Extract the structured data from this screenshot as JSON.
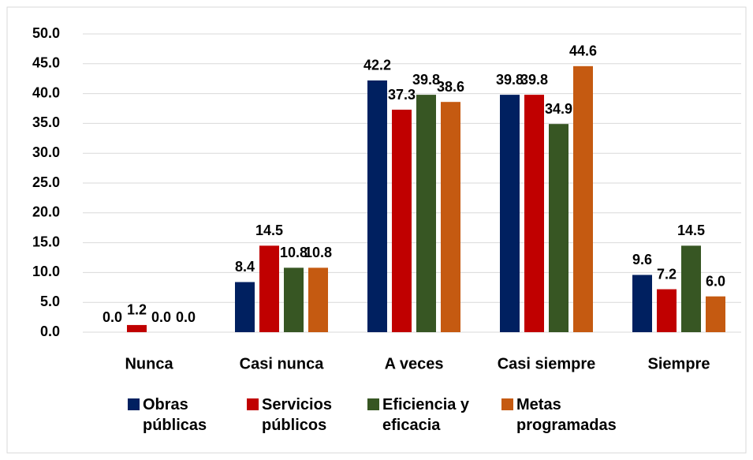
{
  "chart_data": {
    "type": "bar",
    "categories": [
      "Nunca",
      "Casi nunca",
      "A veces",
      "Casi siempre",
      "Siempre"
    ],
    "series": [
      {
        "name": "Obras públicas",
        "color": "#002060",
        "values": [
          0.0,
          8.4,
          42.2,
          39.8,
          9.6
        ],
        "value_labels": [
          "0.0",
          "8.4",
          "42.2",
          "39.8",
          "9.6"
        ]
      },
      {
        "name": "Servicios públicos",
        "color": "#c00000",
        "values": [
          1.2,
          14.5,
          37.3,
          39.8,
          7.2
        ],
        "value_labels": [
          "1.2",
          "14.5",
          "37.3",
          "39.8",
          "7.2"
        ]
      },
      {
        "name": "Eficiencia y eficacia",
        "color": "#375623",
        "values": [
          0.0,
          10.8,
          39.8,
          34.9,
          14.5
        ],
        "value_labels": [
          "0.0",
          "10.8",
          "39.8",
          "34.9",
          "14.5"
        ]
      },
      {
        "name": "Metas programadas",
        "color": "#c55a11",
        "values": [
          0.0,
          10.8,
          38.6,
          44.6,
          6.0
        ],
        "value_labels": [
          "0.0",
          "10.8",
          "38.6",
          "44.6",
          "6.0"
        ]
      }
    ],
    "ylim": [
      0,
      50
    ],
    "yticks": [
      {
        "value": 0,
        "label": "0.0"
      },
      {
        "value": 5,
        "label": "5.0"
      },
      {
        "value": 10,
        "label": "10.0"
      },
      {
        "value": 15,
        "label": "15.0"
      },
      {
        "value": 20,
        "label": "20.0"
      },
      {
        "value": 25,
        "label": "25.0"
      },
      {
        "value": 30,
        "label": "30.0"
      },
      {
        "value": 35,
        "label": "35.0"
      },
      {
        "value": 40,
        "label": "40.0"
      },
      {
        "value": 45,
        "label": "45.0"
      },
      {
        "value": 50,
        "label": "50.0"
      }
    ],
    "grid": true,
    "legend": "bottom"
  }
}
